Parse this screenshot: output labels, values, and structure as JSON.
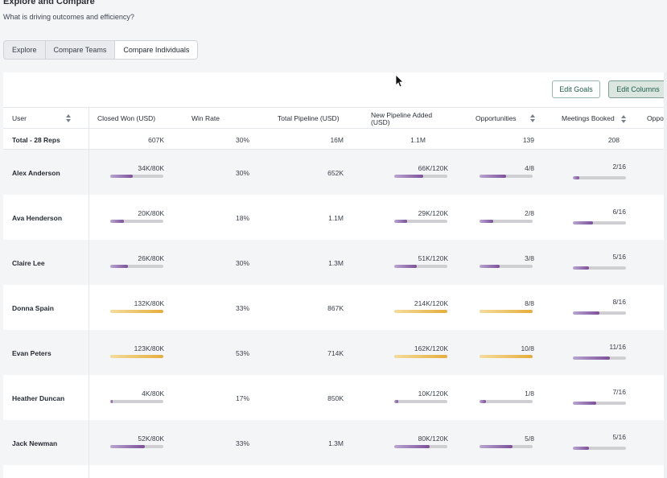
{
  "page": {
    "title": "Explore and Compare",
    "subtitle": "What is driving outcomes and efficiency?"
  },
  "tabs": [
    {
      "label": "Explore",
      "active": false
    },
    {
      "label": "Compare Teams",
      "active": false
    },
    {
      "label": "Compare Individuals",
      "active": true
    }
  ],
  "toolbar": {
    "edit_goals_label": "Edit Goals",
    "edit_columns_label": "Edit Columns"
  },
  "columns": [
    {
      "key": "user",
      "label": "User",
      "sortable": true
    },
    {
      "key": "closed_won",
      "label": "Closed Won (USD)",
      "sortable": false
    },
    {
      "key": "win_rate",
      "label": "Win Rate",
      "sortable": false
    },
    {
      "key": "total_pipeline",
      "label": "Total Pipeline (USD)",
      "sortable": false
    },
    {
      "key": "new_pipeline",
      "label": "New Pipeline Added (USD)",
      "sortable": false
    },
    {
      "key": "opportunities",
      "label": "Opportunities",
      "sortable": true
    },
    {
      "key": "meetings",
      "label": "Meetings Booked",
      "sortable": true
    },
    {
      "key": "more",
      "label": "Oppo",
      "sortable": false
    }
  ],
  "total_row": {
    "user": "Total - 28 Reps",
    "closed_won": "607K",
    "win_rate": "30%",
    "total_pipeline": "16M",
    "new_pipeline": "1.1M",
    "opportunities": "139",
    "meetings": "208"
  },
  "rows": [
    {
      "user": "Alex Anderson",
      "closed_won": "34K/80K",
      "closed_won_pct": 0.42,
      "closed_won_goal_met": false,
      "win_rate": "30%",
      "total_pipeline": "652K",
      "new_pipeline": "66K/120K",
      "new_pipeline_pct": 0.55,
      "new_pipeline_goal_met": false,
      "opportunities": "4/8",
      "opportunities_pct": 0.5,
      "opportunities_goal_met": false,
      "meetings": "2/16",
      "meetings_pct": 0.125,
      "meetings_goal_met": false
    },
    {
      "user": "Ava Henderson",
      "closed_won": "20K/80K",
      "closed_won_pct": 0.25,
      "closed_won_goal_met": false,
      "win_rate": "18%",
      "total_pipeline": "1.1M",
      "new_pipeline": "29K/120K",
      "new_pipeline_pct": 0.24,
      "new_pipeline_goal_met": false,
      "opportunities": "2/8",
      "opportunities_pct": 0.25,
      "opportunities_goal_met": false,
      "meetings": "6/16",
      "meetings_pct": 0.375,
      "meetings_goal_met": false
    },
    {
      "user": "Claire Lee",
      "closed_won": "26K/80K",
      "closed_won_pct": 0.33,
      "closed_won_goal_met": false,
      "win_rate": "30%",
      "total_pipeline": "1.3M",
      "new_pipeline": "51K/120K",
      "new_pipeline_pct": 0.43,
      "new_pipeline_goal_met": false,
      "opportunities": "3/8",
      "opportunities_pct": 0.375,
      "opportunities_goal_met": false,
      "meetings": "5/16",
      "meetings_pct": 0.31,
      "meetings_goal_met": false
    },
    {
      "user": "Donna Spain",
      "closed_won": "132K/80K",
      "closed_won_pct": 1.0,
      "closed_won_goal_met": true,
      "win_rate": "33%",
      "total_pipeline": "867K",
      "new_pipeline": "214K/120K",
      "new_pipeline_pct": 1.0,
      "new_pipeline_goal_met": true,
      "opportunities": "8/8",
      "opportunities_pct": 1.0,
      "opportunities_goal_met": true,
      "meetings": "8/16",
      "meetings_pct": 0.5,
      "meetings_goal_met": false
    },
    {
      "user": "Evan Peters",
      "closed_won": "123K/80K",
      "closed_won_pct": 1.0,
      "closed_won_goal_met": true,
      "win_rate": "53%",
      "total_pipeline": "714K",
      "new_pipeline": "162K/120K",
      "new_pipeline_pct": 1.0,
      "new_pipeline_goal_met": true,
      "opportunities": "10/8",
      "opportunities_pct": 1.0,
      "opportunities_goal_met": true,
      "meetings": "11/16",
      "meetings_pct": 0.69,
      "meetings_goal_met": false
    },
    {
      "user": "Heather Duncan",
      "closed_won": "4K/80K",
      "closed_won_pct": 0.05,
      "closed_won_goal_met": false,
      "win_rate": "17%",
      "total_pipeline": "850K",
      "new_pipeline": "10K/120K",
      "new_pipeline_pct": 0.08,
      "new_pipeline_goal_met": false,
      "opportunities": "1/8",
      "opportunities_pct": 0.125,
      "opportunities_goal_met": false,
      "meetings": "7/16",
      "meetings_pct": 0.44,
      "meetings_goal_met": false
    },
    {
      "user": "Jack Newman",
      "closed_won": "52K/80K",
      "closed_won_pct": 0.65,
      "closed_won_goal_met": false,
      "win_rate": "33%",
      "total_pipeline": "1.3M",
      "new_pipeline": "80K/120K",
      "new_pipeline_pct": 0.67,
      "new_pipeline_goal_met": false,
      "opportunities": "5/8",
      "opportunities_pct": 0.625,
      "opportunities_goal_met": false,
      "meetings": "5/16",
      "meetings_pct": 0.31,
      "meetings_goal_met": false
    }
  ]
}
